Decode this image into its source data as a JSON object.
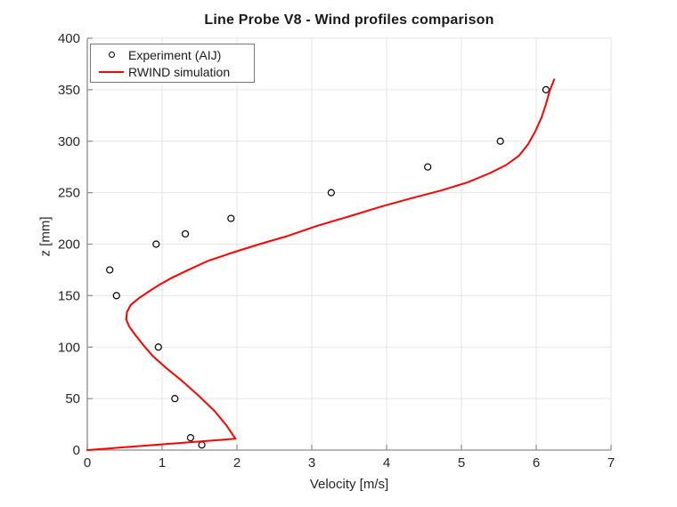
{
  "chart_data": {
    "type": "line+scatter",
    "title": "Line Probe V8 - Wind profiles comparison",
    "xlabel": "Velocity [m/s]",
    "ylabel": "z [mm]",
    "xlim": [
      0,
      7
    ],
    "ylim": [
      0,
      400
    ],
    "x_ticks": [
      0,
      1,
      2,
      3,
      4,
      5,
      6,
      7
    ],
    "y_ticks": [
      0,
      50,
      100,
      150,
      200,
      250,
      300,
      350,
      400
    ],
    "grid": true,
    "legend_position": "top-left-inside",
    "colors": {
      "grid": "#e6e6e6",
      "axis": "#8c8c8c",
      "tick_label": "#262626",
      "experiment_marker": "#000000",
      "simulation_line": "#ff0000"
    },
    "series": [
      {
        "name": "Experiment (AIJ)",
        "type": "scatter",
        "marker": "open-circle",
        "color": "#000000",
        "points": [
          [
            1.53,
            5
          ],
          [
            1.38,
            12
          ],
          [
            1.17,
            50
          ],
          [
            0.95,
            100
          ],
          [
            0.39,
            150
          ],
          [
            0.3,
            175
          ],
          [
            0.92,
            200
          ],
          [
            1.31,
            210
          ],
          [
            1.92,
            225
          ],
          [
            3.26,
            250
          ],
          [
            4.55,
            275
          ],
          [
            5.52,
            300
          ],
          [
            6.13,
            350
          ]
        ]
      },
      {
        "name": "RWIND simulation",
        "type": "line",
        "color": "#ff0000",
        "points": [
          [
            0,
            0
          ],
          [
            1.98,
            11
          ],
          [
            1.86,
            24
          ],
          [
            1.7,
            38
          ],
          [
            1.5,
            52
          ],
          [
            1.27,
            67
          ],
          [
            1.05,
            80
          ],
          [
            0.88,
            91
          ],
          [
            0.76,
            101
          ],
          [
            0.64,
            112
          ],
          [
            0.56,
            120
          ],
          [
            0.52,
            127
          ],
          [
            0.53,
            134
          ],
          [
            0.58,
            141
          ],
          [
            0.68,
            147
          ],
          [
            0.8,
            153
          ],
          [
            0.95,
            160
          ],
          [
            1.12,
            167
          ],
          [
            1.35,
            175
          ],
          [
            1.62,
            184
          ],
          [
            1.95,
            192
          ],
          [
            2.3,
            200
          ],
          [
            2.68,
            208
          ],
          [
            3.08,
            218
          ],
          [
            3.5,
            227
          ],
          [
            3.95,
            237
          ],
          [
            4.35,
            245
          ],
          [
            4.72,
            252
          ],
          [
            5.08,
            260
          ],
          [
            5.38,
            269
          ],
          [
            5.6,
            277
          ],
          [
            5.77,
            286
          ],
          [
            5.89,
            297
          ],
          [
            5.99,
            310
          ],
          [
            6.07,
            323
          ],
          [
            6.13,
            336
          ],
          [
            6.18,
            349
          ],
          [
            6.24,
            360
          ]
        ]
      }
    ]
  }
}
